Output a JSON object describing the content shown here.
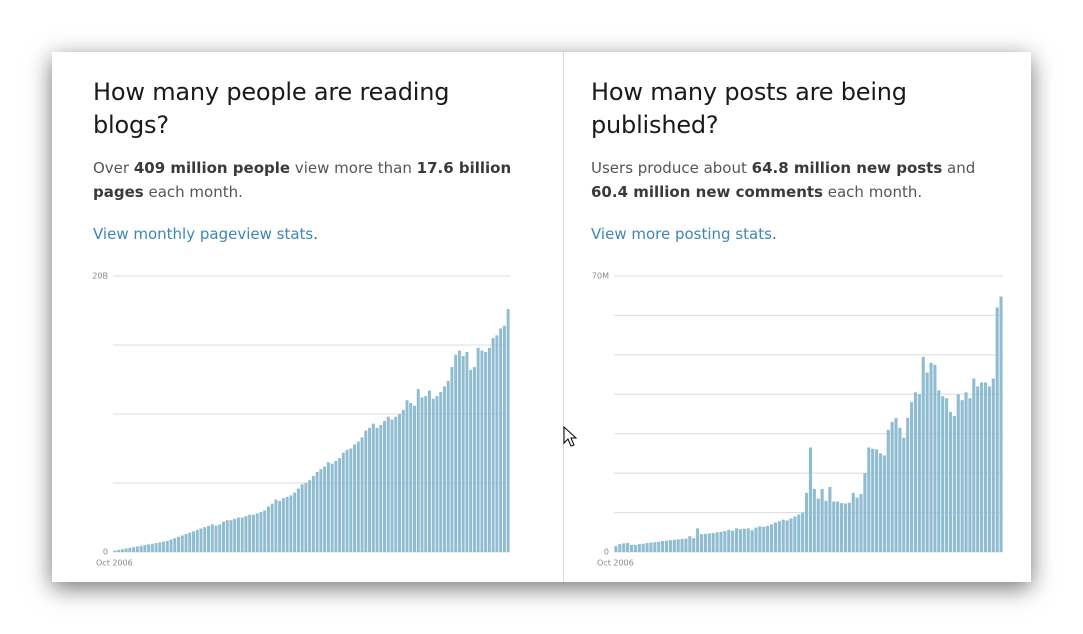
{
  "panels": [
    {
      "title": "How many people are reading blogs?",
      "text": [
        {
          "text": "Over ",
          "bold": false
        },
        {
          "text": "409 million people",
          "bold": true
        },
        {
          "text": " view more than ",
          "bold": false
        },
        {
          "text": "17.6 billion pages",
          "bold": true
        },
        {
          "text": " each month.",
          "bold": false
        }
      ],
      "link": "View monthly pageview stats",
      "link_suffix": "."
    },
    {
      "title": "How many posts are being published?",
      "text": [
        {
          "text": "Users produce about ",
          "bold": false
        },
        {
          "text": "64.8 million new posts",
          "bold": true
        },
        {
          "text": " and ",
          "bold": false
        },
        {
          "text": "60.4 million new comments",
          "bold": true
        },
        {
          "text": " each month.",
          "bold": false
        }
      ],
      "link": "View more posting stats",
      "link_suffix": "."
    }
  ],
  "chart_data": [
    {
      "type": "bar",
      "color": "#8fbcd1",
      "grid": true,
      "categories": [
        "Oct 2006",
        null,
        null,
        null,
        null,
        null,
        null,
        null,
        null,
        null,
        null,
        null,
        null,
        null,
        null,
        null,
        null,
        null,
        null,
        null,
        null,
        null,
        null,
        null,
        null,
        null,
        null,
        null,
        null,
        null,
        null,
        null,
        null,
        null,
        null,
        null,
        null,
        null,
        null,
        null,
        null,
        null,
        null,
        null,
        null,
        null,
        null,
        null,
        null,
        null,
        null,
        null,
        null,
        null,
        null,
        null,
        null,
        null,
        null,
        null,
        null,
        null,
        null,
        null,
        null,
        null,
        null,
        null,
        null,
        null,
        null,
        null,
        null,
        null,
        null,
        null,
        null,
        null,
        null,
        null,
        null,
        null,
        null,
        null,
        null,
        null,
        null,
        null,
        null,
        null,
        null,
        null,
        null,
        null,
        null,
        null,
        null,
        null,
        null,
        null,
        null,
        null,
        null,
        null,
        null,
        null
      ],
      "values": [
        0.1,
        0.15,
        0.2,
        0.25,
        0.3,
        0.35,
        0.4,
        0.45,
        0.5,
        0.55,
        0.6,
        0.65,
        0.7,
        0.75,
        0.8,
        0.9,
        1.0,
        1.1,
        1.2,
        1.3,
        1.4,
        1.5,
        1.6,
        1.7,
        1.8,
        1.9,
        2.0,
        1.9,
        2.0,
        2.2,
        2.3,
        2.3,
        2.4,
        2.5,
        2.5,
        2.6,
        2.7,
        2.7,
        2.8,
        2.9,
        3.0,
        3.3,
        3.5,
        3.8,
        3.7,
        3.9,
        4.0,
        4.1,
        4.3,
        4.6,
        4.9,
        5.0,
        5.2,
        5.5,
        5.8,
        6.0,
        6.2,
        6.5,
        6.4,
        6.6,
        6.8,
        7.2,
        7.4,
        7.5,
        7.8,
        8.0,
        8.3,
        8.8,
        9.0,
        9.3,
        9.0,
        9.2,
        9.5,
        9.8,
        9.6,
        9.8,
        10.0,
        10.3,
        11.0,
        10.8,
        10.6,
        11.8,
        11.2,
        11.3,
        11.7,
        11.1,
        11.3,
        11.6,
        12.0,
        12.4,
        13.4,
        14.3,
        14.6,
        14.2,
        14.5,
        13.2,
        13.4,
        14.8,
        14.6,
        14.5,
        14.8,
        15.5,
        15.7,
        16.2,
        16.4,
        17.6
      ],
      "ylim": [
        0,
        20
      ],
      "yticks": [
        0,
        {
          "value": 5,
          "label": null
        },
        {
          "value": 10,
          "label": null
        },
        {
          "value": 15,
          "label": null
        },
        {
          "value": 20,
          "label": "20B"
        }
      ]
    },
    {
      "type": "bar",
      "color": "#8fbcd1",
      "grid": true,
      "categories": [
        "Oct 2006",
        null,
        null,
        null,
        null,
        null,
        null,
        null,
        null,
        null,
        null,
        null,
        null,
        null,
        null,
        null,
        null,
        null,
        null,
        null,
        null,
        null,
        null,
        null,
        null,
        null,
        null,
        null,
        null,
        null,
        null,
        null,
        null,
        null,
        null,
        null,
        null,
        null,
        null,
        null,
        null,
        null,
        null,
        null,
        null,
        null,
        null,
        null,
        null,
        null,
        null,
        null,
        null,
        null,
        null,
        null,
        null,
        null,
        null,
        null,
        null,
        null,
        null,
        null,
        null,
        null,
        null,
        null,
        null,
        null,
        null,
        null,
        null,
        null,
        null,
        null,
        null,
        null,
        null,
        null,
        null,
        null,
        null,
        null,
        null,
        null,
        null,
        null,
        null,
        null,
        null,
        null,
        null,
        null,
        null,
        null,
        null,
        null,
        null,
        null
      ],
      "values": [
        1.5,
        2,
        2.2,
        2.3,
        1.8,
        1.8,
        2.0,
        2.1,
        2.3,
        2.4,
        2.5,
        2.6,
        2.8,
        2.9,
        3.0,
        3.1,
        3.2,
        3.3,
        3.4,
        4.0,
        3.5,
        6.0,
        4.5,
        4.6,
        4.7,
        4.8,
        5.0,
        5.1,
        5.3,
        5.6,
        5.4,
        6.0,
        5.8,
        5.9,
        6.0,
        5.5,
        6.2,
        6.5,
        6.4,
        6.6,
        7.0,
        7.5,
        7.8,
        8.2,
        8.0,
        8.5,
        9.0,
        9.5,
        10.0,
        15.0,
        26.5,
        16.0,
        13.5,
        16.0,
        13.0,
        16.5,
        12.8,
        12.8,
        12.4,
        12.3,
        12.5,
        15.0,
        13.8,
        14.7,
        20.0,
        26.5,
        26.2,
        26.0,
        25.0,
        24.5,
        31.0,
        33.0,
        34.0,
        31.5,
        29.0,
        34.0,
        38.0,
        40.5,
        40.0,
        49.5,
        45.5,
        48.0,
        47.5,
        41.0,
        39.5,
        39.0,
        35.5,
        34.5,
        40.0,
        38.5,
        40.5,
        39.0,
        44.0,
        42.0,
        43.0,
        43.0,
        42.0,
        44.0,
        62.0,
        64.8
      ],
      "ylim": [
        0,
        70
      ],
      "yticks": [
        0,
        {
          "value": 10,
          "label": null
        },
        {
          "value": 20,
          "label": null
        },
        {
          "value": 30,
          "label": null
        },
        {
          "value": 40,
          "label": null
        },
        {
          "value": 50,
          "label": null
        },
        {
          "value": 60,
          "label": null
        },
        {
          "value": 70,
          "label": "70M"
        }
      ]
    }
  ]
}
